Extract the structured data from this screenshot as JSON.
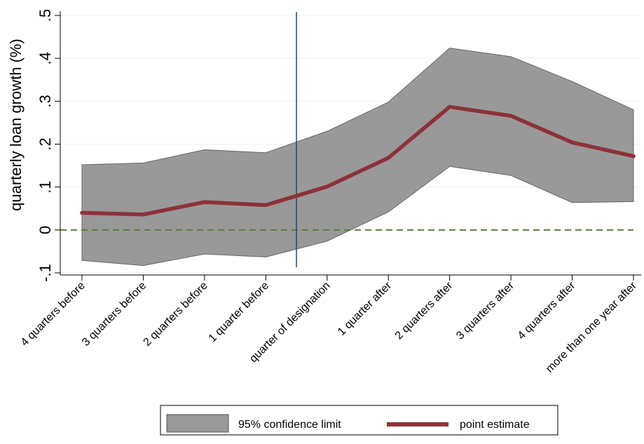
{
  "chart_data": {
    "type": "line",
    "ylabel": "quarterly loan growth (%)",
    "xlabel": "",
    "title": "",
    "ylim": [
      -0.1,
      0.5
    ],
    "yticks": [
      -0.1,
      0,
      0.1,
      0.2,
      0.3,
      0.4,
      0.5
    ],
    "ytick_labels": [
      "-.1",
      "0",
      ".1",
      ".2",
      ".3",
      ".4",
      ".5"
    ],
    "categories": [
      "4 quarters before",
      "3 quarters before",
      "2 quarters before",
      "1 quarter before",
      "quarter of designation",
      "1 quarter after",
      "2 quarters after",
      "3 quarters after",
      "4 quarters after",
      "more than one year after"
    ],
    "series": [
      {
        "name": "point estimate",
        "type": "line",
        "color": "#8e3139",
        "values": [
          0.04,
          0.036,
          0.065,
          0.058,
          0.101,
          0.168,
          0.287,
          0.266,
          0.204,
          0.172
        ]
      },
      {
        "name": "95% confidence limit",
        "type": "band",
        "color": "#999999",
        "upper": [
          0.152,
          0.156,
          0.187,
          0.18,
          0.23,
          0.298,
          0.424,
          0.404,
          0.346,
          0.28
        ],
        "lower": [
          -0.071,
          -0.083,
          -0.056,
          -0.063,
          -0.026,
          0.042,
          0.148,
          0.127,
          0.064,
          0.066
        ]
      }
    ],
    "reference_lines": [
      {
        "orientation": "horizontal",
        "value": 0,
        "style": "dashed",
        "color": "#5c7f34"
      },
      {
        "orientation": "vertical",
        "between_categories": [
          "1 quarter before",
          "quarter of designation"
        ],
        "style": "solid",
        "color": "#1a4a73"
      }
    ],
    "grid": "horizontal",
    "legend": {
      "position": "bottom",
      "entries": [
        "95% confidence limit",
        "point estimate"
      ]
    }
  }
}
